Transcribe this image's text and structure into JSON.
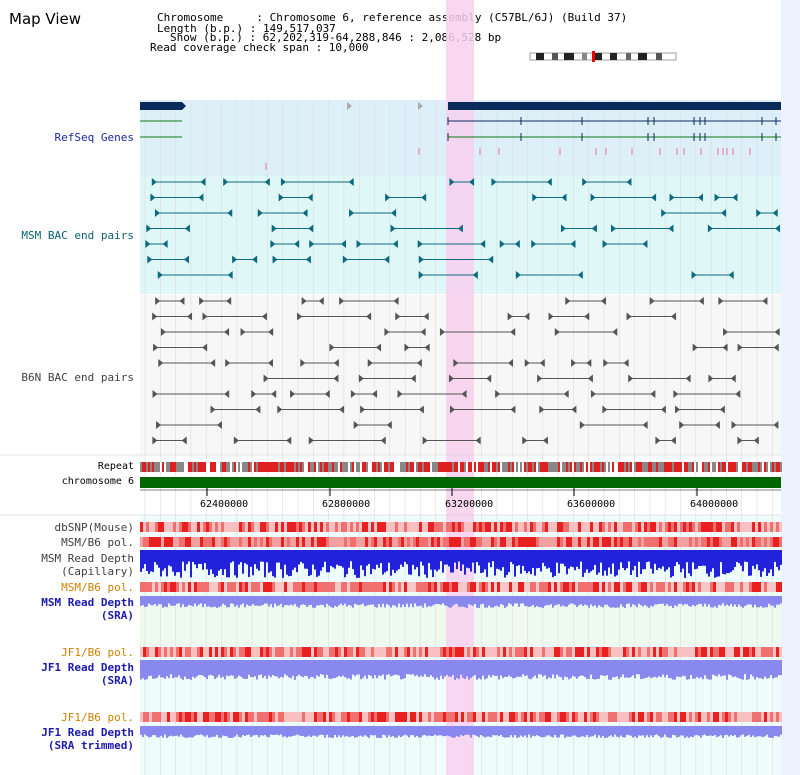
{
  "view": {
    "title": "Map View",
    "info_lines": [
      "Chromosome     : Chromosome 6, reference assembly (C57BL/6J) (Build 37)",
      "Length (b.p.) : 149,517,037",
      "Show (b.p.) : 62,202,319-64,288,846 : 2,086,528 bp",
      "Read coverage check span : 10,000"
    ]
  },
  "tracks": {
    "refseq": "RefSeq Genes",
    "msm_bac": "MSM BAC end pairs",
    "b6n_bac": "B6N BAC end pairs",
    "repeat": "Repeat",
    "chrom": "chromosome 6",
    "dbsnp": "dbSNP(Mouse)",
    "msm_b6_pol_1": "MSM/B6 pol.",
    "msm_depth_cap_1": "MSM Read Depth",
    "msm_depth_cap_2": "(Capillary)",
    "msm_b6_pol_2": "MSM/B6 pol.",
    "msm_depth_sra_1": "MSM Read Depth",
    "msm_depth_sra_2": "(SRA)",
    "jf1_pol_1": "JF1/B6 pol.",
    "jf1_depth_1a": "JF1 Read Depth",
    "jf1_depth_1b": "(SRA)",
    "jf1_pol_2": "JF1/B6 pol.",
    "jf1_depth_2a": "JF1 Read Depth",
    "jf1_depth_2b": "(SRA trimmed)"
  },
  "axis": {
    "ticks": [
      "62400000",
      "62800000",
      "63200000",
      "63600000",
      "64000000"
    ]
  },
  "colors": {
    "refseq_bg": "#ddf0fa",
    "msm_bg": "#e0f7f7",
    "highlight": "#f8d0ee",
    "gene_dark": "#0a2a5a",
    "gene_green": "#117a11",
    "msm_feature": "#0a6a80",
    "b6n_feature": "#555555",
    "chrom_bar": "#006600",
    "repeat_red": "#e02020",
    "depth_blue": "#2222dd",
    "depth_light": "#8888ee"
  }
}
